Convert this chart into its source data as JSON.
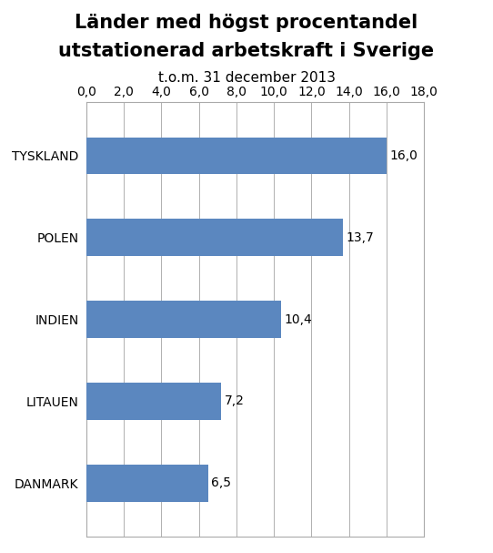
{
  "title_line1": "Länder med högst procentandel",
  "title_line2": "utstationerad arbetskraft i Sverige",
  "subtitle": "t.o.m. 31 december 2013",
  "categories": [
    "TYSKLAND",
    "POLEN",
    "INDIEN",
    "LITAUEN",
    "DANMARK"
  ],
  "values": [
    16.0,
    13.7,
    10.4,
    7.2,
    6.5
  ],
  "bar_color": "#5B87BF",
  "xlim": [
    0,
    18
  ],
  "xticks": [
    0,
    2,
    4,
    6,
    8,
    10,
    12,
    14,
    16,
    18
  ],
  "xtick_labels": [
    "0,0",
    "2,0",
    "4,0",
    "6,0",
    "8,0",
    "10,0",
    "12,0",
    "14,0",
    "16,0",
    "18,0"
  ],
  "value_labels": [
    "16,0",
    "13,7",
    "10,4",
    "7,2",
    "6,5"
  ],
  "background_color": "#ffffff",
  "grid_color": "#b0b0b0",
  "title_fontsize": 15,
  "subtitle_fontsize": 11,
  "label_fontsize": 10,
  "tick_fontsize": 10,
  "value_fontsize": 10,
  "bar_height": 0.45
}
